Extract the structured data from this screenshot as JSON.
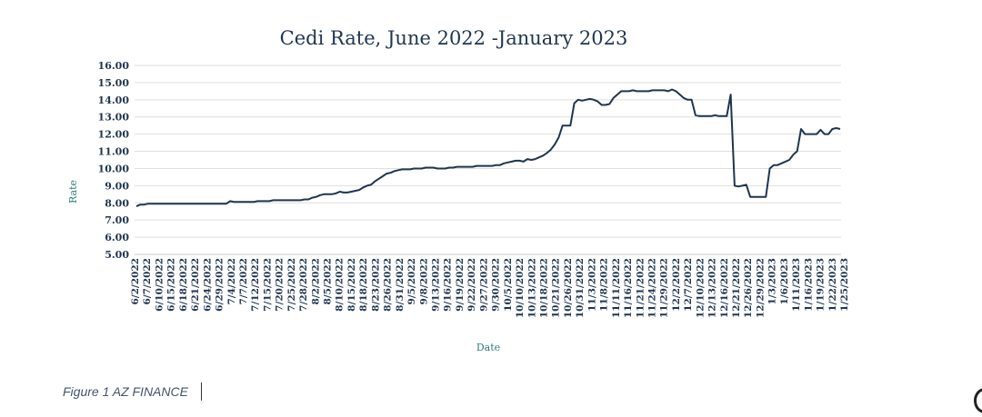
{
  "caption": "Figure 1  AZ FINANCE",
  "chart_data": {
    "type": "line",
    "title": "Cedi Rate, June 2022 -January 2023",
    "xlabel": "Date",
    "ylabel": "Rate",
    "ylim": [
      5,
      16
    ],
    "yticks": [
      "5.00",
      "6.00",
      "7.00",
      "8.00",
      "9.00",
      "10.00",
      "11.00",
      "12.00",
      "13.00",
      "14.00",
      "15.00",
      "16.00"
    ],
    "grid": "horizontal",
    "legend": "none",
    "line_color": "#1f3550",
    "x_tick_labels": [
      "6/2/2022",
      "6/7/2022",
      "6/10/2022",
      "6/15/2022",
      "6/18/2022",
      "6/21/2022",
      "6/24/2022",
      "6/29/2022",
      "7/4/2022",
      "7/7/2022",
      "7/12/2022",
      "7/15/2022",
      "7/20/2022",
      "7/25/2022",
      "7/28/2022",
      "8/2/2022",
      "8/5/2022",
      "8/10/2022",
      "8/15/2022",
      "8/18/2022",
      "8/23/2022",
      "8/26/2022",
      "8/31/2022",
      "9/5/2022",
      "9/8/2022",
      "9/13/2022",
      "9/16/2022",
      "9/19/2022",
      "9/22/2022",
      "9/27/2022",
      "9/30/2022",
      "10/5/2022",
      "10/10/2022",
      "10/13/2022",
      "10/18/2022",
      "10/21/2022",
      "10/26/2022",
      "10/31/2022",
      "11/3/2022",
      "11/8/2022",
      "11/11/2022",
      "11/16/2022",
      "11/21/2022",
      "11/24/2022",
      "11/29/2022",
      "12/2/2022",
      "12/7/2022",
      "12/10/2022",
      "12/13/2022",
      "12/16/2022",
      "12/21/2022",
      "12/26/2022",
      "12/29/2022",
      "1/3/2023",
      "1/6/2023",
      "1/11/2023",
      "1/16/2023",
      "1/19/2023",
      "1/22/2023",
      "1/25/2023"
    ],
    "series": [
      {
        "values": [
          7.8,
          7.9,
          7.9,
          7.95,
          7.95,
          7.95,
          7.95,
          7.95,
          7.95,
          7.95,
          7.95,
          7.95,
          7.95,
          7.95,
          7.95,
          7.95,
          7.95,
          7.95,
          7.95,
          7.95,
          7.95,
          7.95,
          7.95,
          7.95,
          8.1,
          8.05,
          8.05,
          8.05,
          8.05,
          8.05,
          8.05,
          8.1,
          8.1,
          8.1,
          8.1,
          8.15,
          8.15,
          8.15,
          8.15,
          8.15,
          8.15,
          8.15,
          8.15,
          8.2,
          8.2,
          8.3,
          8.35,
          8.45,
          8.5,
          8.5,
          8.5,
          8.55,
          8.65,
          8.6,
          8.6,
          8.65,
          8.7,
          8.75,
          8.9,
          9.0,
          9.05,
          9.25,
          9.4,
          9.55,
          9.7,
          9.75,
          9.85,
          9.9,
          9.95,
          9.95,
          9.95,
          10.0,
          10.0,
          10.0,
          10.05,
          10.05,
          10.05,
          10.0,
          10.0,
          10.0,
          10.05,
          10.05,
          10.1,
          10.1,
          10.1,
          10.1,
          10.1,
          10.15,
          10.15,
          10.15,
          10.15,
          10.15,
          10.2,
          10.2,
          10.3,
          10.35,
          10.4,
          10.45,
          10.45,
          10.4,
          10.55,
          10.5,
          10.55,
          10.65,
          10.75,
          10.9,
          11.1,
          11.4,
          11.8,
          12.5,
          12.5,
          12.5,
          13.8,
          14.0,
          13.95,
          14.0,
          14.05,
          14.0,
          13.9,
          13.7,
          13.7,
          13.75,
          14.1,
          14.3,
          14.5,
          14.5,
          14.5,
          14.55,
          14.5,
          14.5,
          14.5,
          14.5,
          14.55,
          14.55,
          14.55,
          14.55,
          14.5,
          14.6,
          14.5,
          14.3,
          14.1,
          14.0,
          14.0,
          13.1,
          13.05,
          13.05,
          13.05,
          13.05,
          13.1,
          13.05,
          13.05,
          13.05,
          14.3,
          9.0,
          8.95,
          9.0,
          9.05,
          8.35,
          8.35,
          8.35,
          8.35,
          8.35,
          10.0,
          10.2,
          10.2,
          10.3,
          10.4,
          10.5,
          10.8,
          11.0,
          12.3,
          12.0,
          12.0,
          12.0,
          12.0,
          12.25,
          12.0,
          12.0,
          12.3,
          12.35,
          12.3
        ]
      }
    ]
  }
}
